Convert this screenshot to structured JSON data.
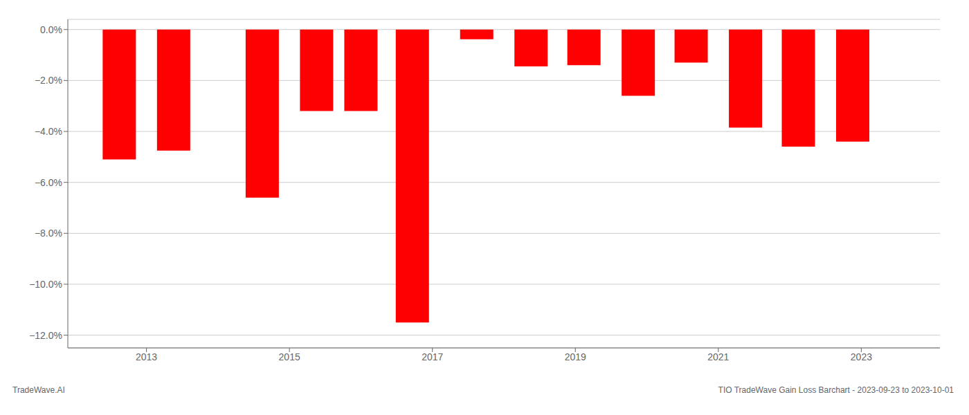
{
  "chart_data": {
    "type": "bar",
    "x": [
      2012.62,
      2013.38,
      2014.62,
      2015.38,
      2016.0,
      2016.72,
      2017.62,
      2018.38,
      2019.12,
      2019.88,
      2020.62,
      2021.38,
      2022.12,
      2022.88
    ],
    "values": [
      -5.1,
      -4.75,
      -6.6,
      -3.2,
      -3.2,
      -11.5,
      -0.38,
      -1.45,
      -1.4,
      -2.6,
      -1.3,
      -3.85,
      -4.6,
      -4.4
    ],
    "color": "#ff0000",
    "xlim": [
      2011.9,
      2024.1
    ],
    "xticks": [
      2013,
      2015,
      2017,
      2019,
      2021,
      2023
    ],
    "ylim": [
      -12.5,
      0.4
    ],
    "yticks": [
      {
        "value": 0.0,
        "label": "0.0%"
      },
      {
        "value": -2.0,
        "label": "−2.0%"
      },
      {
        "value": -4.0,
        "label": "−4.0%"
      },
      {
        "value": -6.0,
        "label": "−6.0%"
      },
      {
        "value": -8.0,
        "label": "−8.0%"
      },
      {
        "value": -10.0,
        "label": "−10.0%"
      },
      {
        "value": -12.0,
        "label": "−12.0%"
      }
    ],
    "grid": true,
    "annotations": [
      "TradeWave.AI",
      "TIO TradeWave Gain Loss Barchart - 2023-09-23 to 2023-10-01"
    ]
  }
}
